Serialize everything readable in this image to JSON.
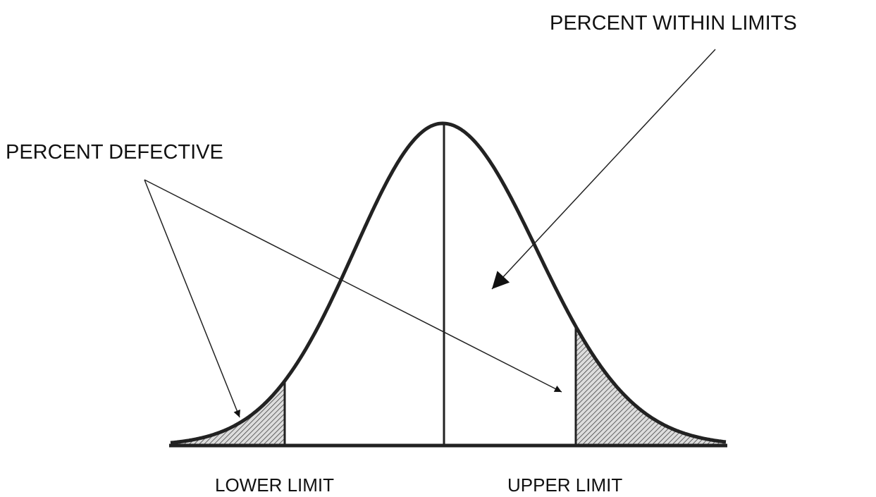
{
  "labels": {
    "within": "PERCENT WITHIN LIMITS",
    "defective": "PERCENT DEFECTIVE",
    "lower": "LOWER LIMIT",
    "upper": "UPPER LIMIT"
  }
}
